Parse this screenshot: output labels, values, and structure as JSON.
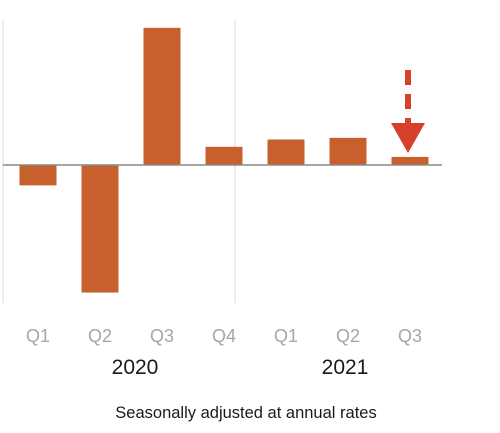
{
  "chart_data": {
    "type": "bar",
    "categories": [
      "Q1",
      "Q2",
      "Q3",
      "Q4",
      "Q1",
      "Q2",
      "Q3"
    ],
    "groups": [
      {
        "label": "2020",
        "categories": [
          "Q1",
          "Q2",
          "Q3",
          "Q4"
        ]
      },
      {
        "label": "2021",
        "categories": [
          "Q1",
          "Q2",
          "Q3"
        ]
      }
    ],
    "values": [
      -5.0,
      -31.4,
      33.8,
      4.5,
      6.3,
      6.7,
      2.0
    ],
    "note": "Seasonally adjusted at annual rates",
    "ylim": [
      -32,
      34
    ],
    "highlight": {
      "category_index": 6,
      "marker": "down-arrow"
    },
    "grid": false,
    "legend": "none"
  },
  "colors": {
    "bar": "#C8602E",
    "axis": "#8a8a8a",
    "divider": "#d9d9d9",
    "arrow": "#D7402A",
    "tick_label": "#a6a6a6",
    "year_label": "#1a1a1a",
    "note": "#1a1a1a"
  }
}
